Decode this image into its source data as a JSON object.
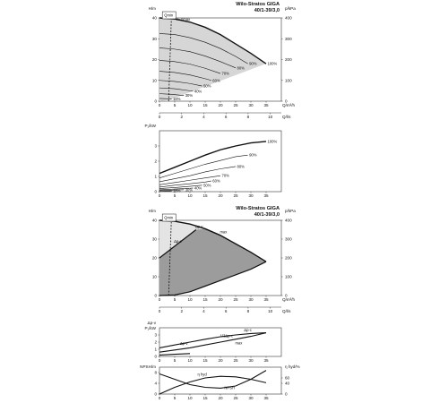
{
  "chart_data": [
    {
      "id": "head_flow",
      "type": "line",
      "title": "Wilo-Stratos GIGA",
      "subtitle": "40/1-39/3,0",
      "ylabel_left": "H/m",
      "ylabel_right": "p/kPa",
      "xlabel": "Q/m³/h",
      "xlabel2": "Q/l/s",
      "xlim": [
        0,
        40
      ],
      "ylim": [
        0,
        40
      ],
      "y_right_lim": [
        0,
        400
      ],
      "x_ticks": [
        "0",
        "5",
        "10",
        "15",
        "20",
        "25",
        "30",
        "35"
      ],
      "y_ticks": [
        "0",
        "10",
        "20",
        "30",
        "40"
      ],
      "y_right_ticks": [
        "0",
        "100",
        "200",
        "300",
        "400"
      ],
      "x2_ticks": [
        "0",
        "2",
        "4",
        "6",
        "8",
        "10"
      ],
      "qmin_label": "Qmin",
      "nmax_label": "n=nmax",
      "qmin_x": 3.0,
      "series": [
        {
          "name": "100%",
          "x": [
            0,
            5,
            10,
            15,
            20,
            25,
            30,
            35
          ],
          "y": [
            40,
            39.5,
            38,
            35.5,
            32,
            27.5,
            23,
            18
          ]
        },
        {
          "name": "90%",
          "x": [
            0,
            5,
            10,
            15,
            20,
            25,
            29
          ],
          "y": [
            32.5,
            32,
            30.5,
            28.3,
            25.3,
            21.5,
            18
          ]
        },
        {
          "name": "80%",
          "x": [
            0,
            5,
            10,
            15,
            20,
            25
          ],
          "y": [
            25.6,
            25,
            23.8,
            21.7,
            19,
            16
          ]
        },
        {
          "name": "70%",
          "x": [
            0,
            5,
            10,
            15,
            20
          ],
          "y": [
            19.6,
            19,
            17.8,
            15.8,
            13.3
          ]
        },
        {
          "name": "60%",
          "x": [
            0,
            5,
            10,
            15,
            17
          ],
          "y": [
            14.4,
            13.8,
            12.6,
            10.8,
            10
          ]
        },
        {
          "name": "50%",
          "x": [
            0,
            5,
            10,
            14
          ],
          "y": [
            10,
            9.5,
            8.5,
            7.3
          ]
        },
        {
          "name": "40%",
          "x": [
            0,
            5,
            10,
            11
          ],
          "y": [
            6.4,
            6,
            5,
            4.8
          ]
        },
        {
          "name": "30%",
          "x": [
            0,
            4,
            8
          ],
          "y": [
            3.6,
            3.3,
            2.7
          ]
        },
        {
          "name": "18%",
          "x": [
            0,
            2,
            4
          ],
          "y": [
            1.3,
            1.2,
            1
          ]
        }
      ]
    },
    {
      "id": "power",
      "type": "line",
      "ylabel": "P₁/kW",
      "xlim": [
        0,
        40
      ],
      "ylim": [
        0,
        4
      ],
      "x_ticks": [
        "0",
        "5",
        "10",
        "15",
        "20",
        "25",
        "30",
        "35"
      ],
      "y_ticks": [
        "0",
        "1",
        "2",
        "3"
      ],
      "series": [
        {
          "name": "100%",
          "x": [
            0,
            5,
            10,
            15,
            20,
            25,
            30,
            35
          ],
          "y": [
            1.2,
            1.6,
            2.0,
            2.4,
            2.75,
            3.0,
            3.2,
            3.3
          ]
        },
        {
          "name": "90%",
          "x": [
            0,
            5,
            10,
            15,
            20,
            25,
            29
          ],
          "y": [
            0.9,
            1.2,
            1.5,
            1.8,
            2.05,
            2.3,
            2.4
          ]
        },
        {
          "name": "80%",
          "x": [
            0,
            5,
            10,
            15,
            20,
            25
          ],
          "y": [
            0.65,
            0.85,
            1.05,
            1.3,
            1.5,
            1.65
          ]
        },
        {
          "name": "70%",
          "x": [
            0,
            5,
            10,
            15,
            20
          ],
          "y": [
            0.45,
            0.6,
            0.75,
            0.9,
            1.05
          ]
        },
        {
          "name": "60%",
          "x": [
            0,
            5,
            10,
            15,
            17
          ],
          "y": [
            0.3,
            0.42,
            0.52,
            0.63,
            0.7
          ]
        },
        {
          "name": "50%",
          "x": [
            0,
            5,
            10,
            14
          ],
          "y": [
            0.2,
            0.27,
            0.35,
            0.42
          ]
        },
        {
          "name": "40%",
          "x": [
            0,
            5,
            10,
            11
          ],
          "y": [
            0.12,
            0.17,
            0.22,
            0.24
          ]
        },
        {
          "name": "30%",
          "x": [
            0,
            4,
            8
          ],
          "y": [
            0.07,
            0.1,
            0.13
          ]
        },
        {
          "name": "18%",
          "x": [
            0,
            2,
            4
          ],
          "y": [
            0.03,
            0.04,
            0.05
          ]
        }
      ]
    },
    {
      "id": "operating_range",
      "type": "area",
      "title": "Wilo-Stratos GIGA",
      "subtitle": "40/1-39/3,0",
      "ylabel_left": "H/m",
      "ylabel_right": "p/kPa",
      "xlabel": "Q/m³/h",
      "xlabel2": "Q/l/s",
      "xlim": [
        0,
        40
      ],
      "ylim": [
        0,
        40
      ],
      "y_right_lim": [
        0,
        400
      ],
      "x_ticks": [
        "0",
        "5",
        "10",
        "15",
        "20",
        "25",
        "30",
        "35"
      ],
      "y_ticks": [
        "0",
        "10",
        "20",
        "30",
        "40"
      ],
      "y_right_ticks": [
        "0",
        "100",
        "200",
        "300",
        "400"
      ],
      "x2_ticks": [
        "0",
        "2",
        "4",
        "6",
        "8",
        "10"
      ],
      "qmin_label": "Qmin",
      "qmin_x": 3.0,
      "labels": [
        "Δp-v",
        "max",
        "Δp-c"
      ],
      "max_curve": {
        "x": [
          0,
          5,
          10,
          15,
          20,
          25,
          30,
          35
        ],
        "y": [
          40,
          39.5,
          38,
          35.5,
          32,
          27.5,
          23,
          18
        ]
      },
      "dpv_line": {
        "x": [
          0,
          12
        ],
        "y": [
          20,
          35
        ]
      },
      "min_curve": {
        "x": [
          0,
          5,
          10,
          15,
          20,
          25,
          30,
          35
        ],
        "y": [
          0,
          0.3,
          2,
          5,
          8,
          11,
          14,
          18
        ]
      }
    },
    {
      "id": "motor_power",
      "type": "line",
      "ylabel": "Δp-v",
      "ylabel2": "P₁/kW",
      "xlim": [
        0,
        40
      ],
      "ylim": [
        0,
        4
      ],
      "x_ticks": [
        "0",
        "5",
        "10",
        "15",
        "20",
        "25",
        "30",
        "35"
      ],
      "y_ticks": [
        "0",
        "1",
        "2",
        "3"
      ],
      "series": [
        {
          "name": "Δp-c",
          "x": [
            0,
            5,
            10,
            15,
            20,
            25,
            30,
            35
          ],
          "y": [
            1.2,
            1.6,
            2.0,
            2.4,
            2.75,
            3.0,
            3.2,
            3.3
          ]
        },
        {
          "name": "Δp-v",
          "x": [
            0,
            5,
            10,
            15,
            20,
            25,
            30,
            35
          ],
          "y": [
            0.6,
            0.9,
            1.2,
            1.6,
            2.0,
            2.4,
            2.8,
            3.3
          ]
        },
        {
          "name": "min",
          "x": [
            0,
            5,
            10
          ],
          "y": [
            0.2,
            0.3,
            0.4
          ]
        }
      ],
      "labels": [
        "1/3Δp-c",
        "max"
      ]
    },
    {
      "id": "npsh",
      "type": "line",
      "ylabel_left": "NPSH/m",
      "ylabel_right": "η hyd/%",
      "xlim": [
        0,
        40
      ],
      "ylim": [
        0,
        10
      ],
      "y_right_lim": [
        0,
        100
      ],
      "x_ticks": [
        "0",
        "5",
        "10",
        "15",
        "20",
        "25",
        "30",
        "35"
      ],
      "y_ticks": [
        "0",
        "4",
        "8"
      ],
      "y_right_ticks": [
        "0",
        "40",
        "60"
      ],
      "series": [
        {
          "name": "η hyd",
          "x": [
            0,
            5,
            10,
            15,
            20,
            25,
            30,
            35
          ],
          "y": [
            0,
            2.5,
            4.5,
            6.0,
            6.6,
            6.4,
            5.5,
            4.2
          ]
        },
        {
          "name": "NPSH",
          "x": [
            0,
            5,
            10,
            15,
            20,
            25,
            30,
            35
          ],
          "y": [
            7.5,
            5.5,
            3.5,
            2.5,
            2.2,
            3.0,
            5.5,
            8.8
          ]
        }
      ]
    }
  ]
}
